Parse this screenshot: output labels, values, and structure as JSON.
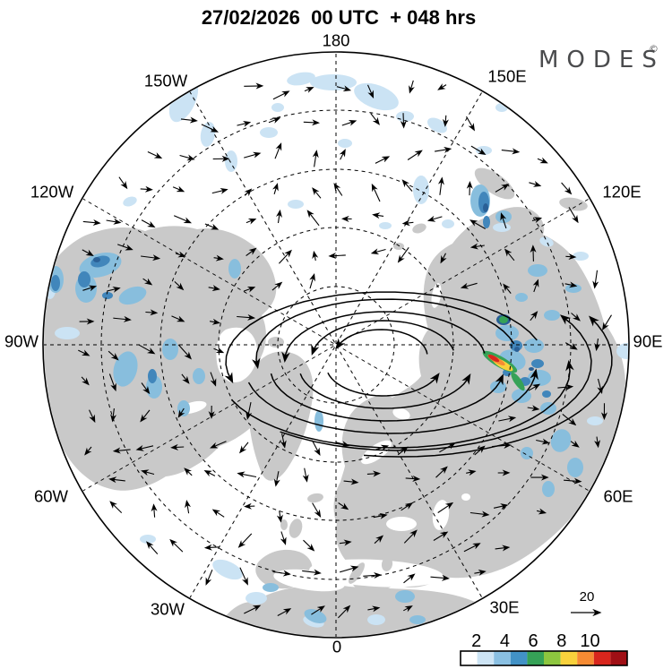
{
  "header": {
    "title": "27/02/2026  00 UTC  + 048 hrs"
  },
  "branding": {
    "logo_text": "MODES",
    "logo_mark": "©"
  },
  "map": {
    "projection_note": "Northern Hemisphere polar view",
    "longitude_labels": [
      "180",
      "150E",
      "120E",
      "90E",
      "60E",
      "30E",
      "0",
      "30W",
      "60W",
      "90W",
      "120W",
      "150W"
    ]
  },
  "legend": {
    "reference_vector_label": "20",
    "colorbar_ticks": [
      "2",
      "4",
      "6",
      "8",
      "10"
    ],
    "colorbar_colors": [
      "#ffffff",
      "#cde4f4",
      "#8ac0e2",
      "#4292c6",
      "#36a257",
      "#8dc63f",
      "#f8d13c",
      "#f68b33",
      "#d8261d",
      "#a00f15"
    ]
  },
  "colors": {
    "land": "#c9c9c9",
    "shade_light": "#cbe3f4",
    "shade_medium": "#88bedd",
    "shade_dark": "#4186bb",
    "shade_darkest": "#2a6096",
    "streak_green": "#36a257",
    "streak_yellow": "#f8d13c",
    "streak_orange": "#f68b33",
    "streak_red": "#d8261d",
    "arrow": "#000000",
    "logo": "#4a4b4d"
  }
}
